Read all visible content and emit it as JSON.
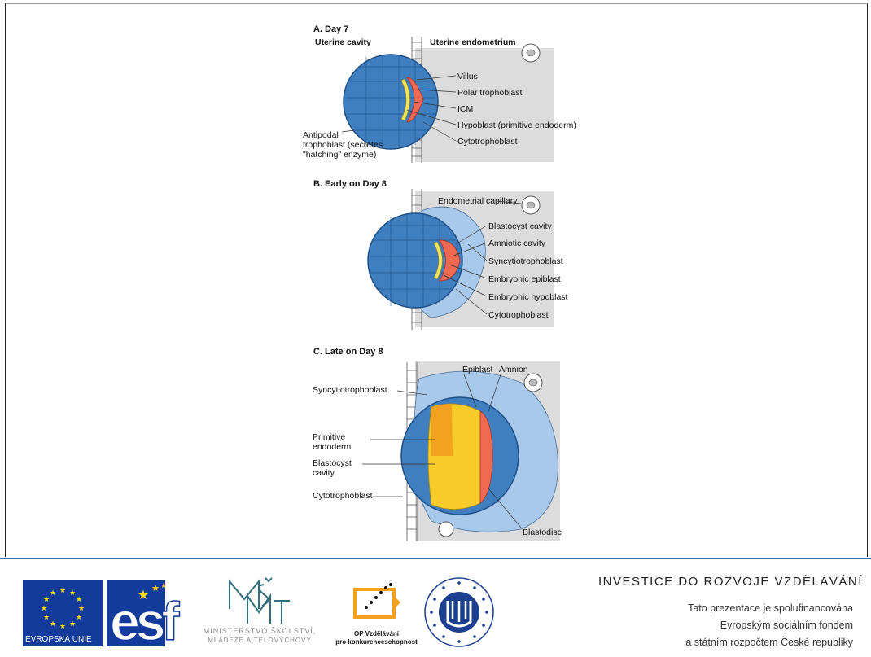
{
  "panels": {
    "a": {
      "title": "A. Day 7",
      "header_left": "Uterine cavity",
      "header_right": "Uterine endometrium",
      "labels": [
        "Villus",
        "Polar trophoblast",
        "ICM",
        "Hypoblast (primitive endoderm)",
        "Cytotrophoblast"
      ],
      "antipodal": [
        "Antipodal",
        "trophoblast (secretes",
        "\"hatching\" enzyme)"
      ]
    },
    "b": {
      "title": "B. Early on Day 8",
      "labels": [
        "Endometrial capillary",
        "Blastocyst cavity",
        "Amniotic cavity",
        "Syncytiotrophoblast",
        "Embryonic epiblast",
        "Embryonic hypoblast",
        "Cytotrophoblast"
      ]
    },
    "c": {
      "title": "C. Late on Day 8",
      "top_labels": [
        "Epiblast",
        "Amnion"
      ],
      "left_labels": {
        "syncytio": "Syncytiotrophoblast",
        "primitive_1": "Primitive",
        "primitive_2": "endoderm",
        "blastocyst_1": "Blastocyst",
        "blastocyst_2": "cavity",
        "cyto": "Cytotrophoblast"
      },
      "bottom_label": "Blastodisc"
    }
  },
  "footer": {
    "title": "INVESTICE DO ROZVOJE VZDĚLÁVÁNÍ",
    "lines": [
      "Tato prezentace je spolufinancována",
      "Evropským sociálním fondem",
      "a státním rozpočtem České republiky"
    ],
    "logos": {
      "eu_label": "EVROPSKÁ UNIE",
      "esf": "esf",
      "msmt_line1": "MINISTERSTVO ŠKOLSTVÍ,",
      "msmt_line2": "MLÁDEŽE A TĚLOVÝCHOVY",
      "op_line1": "OP Vzdělávání",
      "op_line2": "pro konkurenceschopnost",
      "muni_text": "UNIVERSITAS MASARYKIANA BRUNENSIS"
    }
  },
  "colors": {
    "endometrium": "#dcdcdc",
    "blastocyst": "#3f7fbf",
    "syncytio": "#a9c9ea",
    "epiblast": "#f06a52",
    "hypoblast": "#f7e35a",
    "cavity_orange": "#f2a21f",
    "footer_rule": "#3d6fa8",
    "eu_blue": "#123b9c",
    "eu_star": "#ffdd00"
  }
}
